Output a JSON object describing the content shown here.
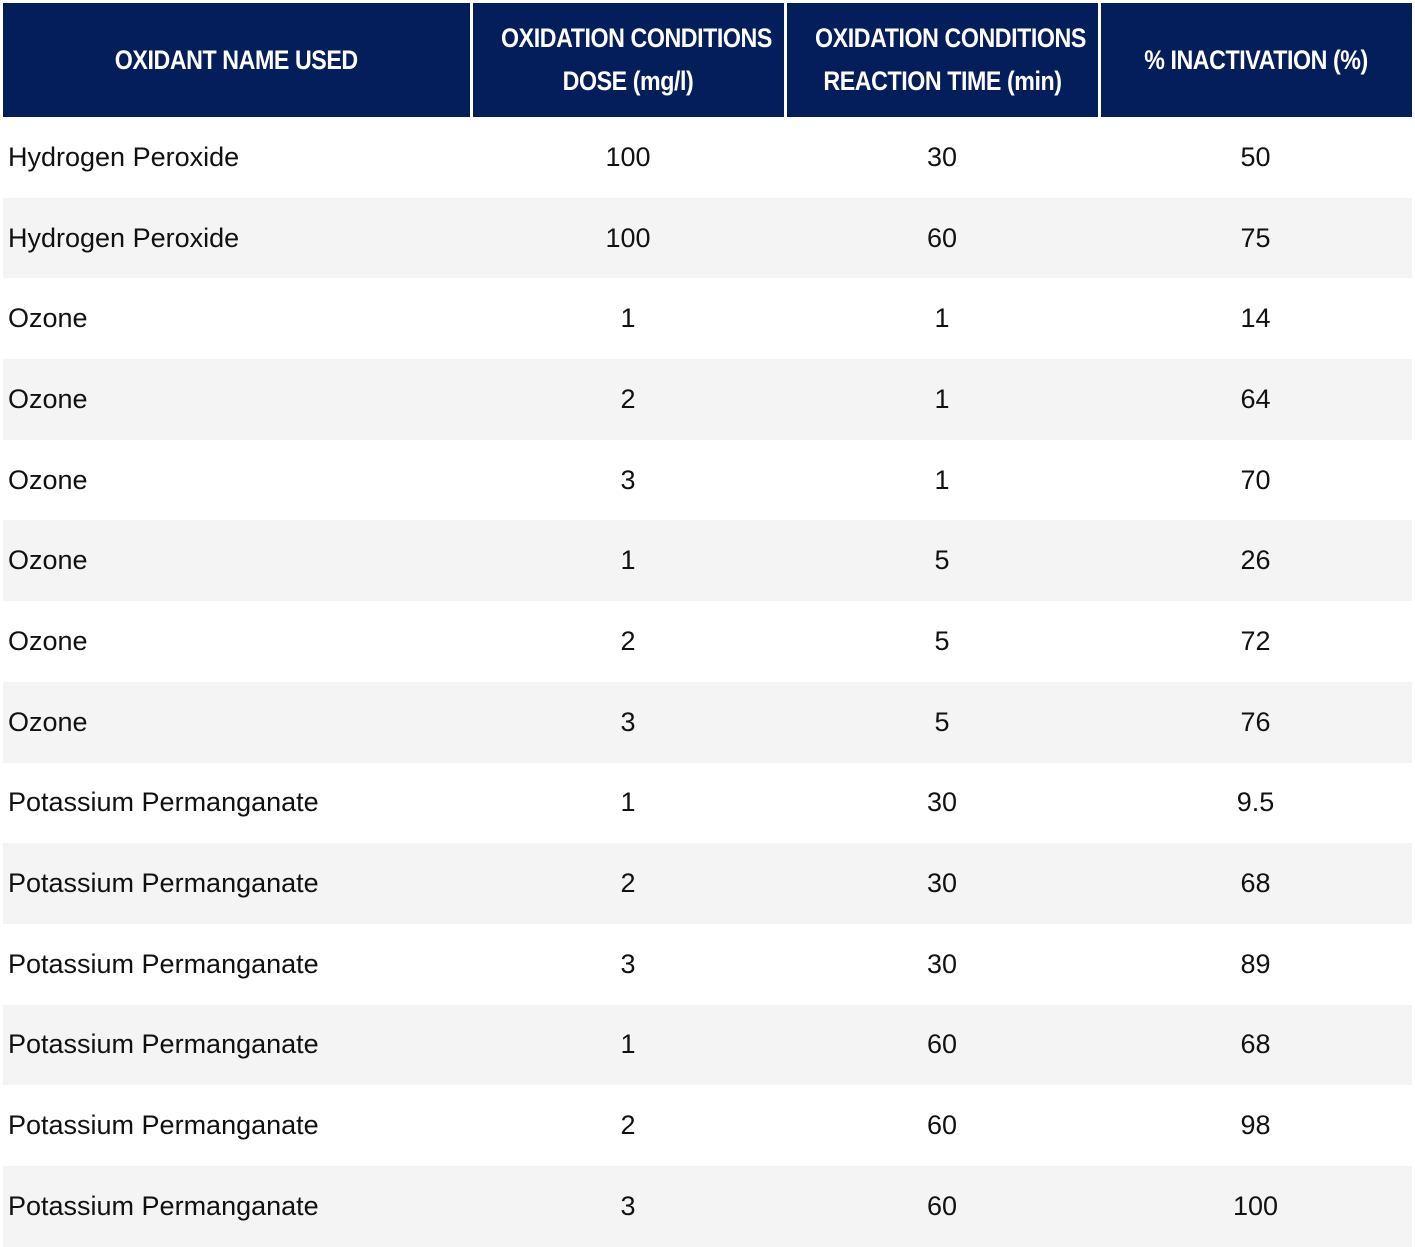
{
  "table": {
    "headers": [
      [
        "OXIDANT NAME USED"
      ],
      [
        "OXIDATION CONDITIONS",
        "DOSE (mg/l)"
      ],
      [
        "OXIDATION CONDITIONS",
        "REACTION TIME (min)"
      ],
      [
        "% INACTIVATION (%)"
      ]
    ],
    "rows": [
      {
        "oxidant": "Hydrogen Peroxide",
        "dose": "100",
        "time": "30",
        "inactivation": "50"
      },
      {
        "oxidant": "Hydrogen Peroxide",
        "dose": "100",
        "time": "60",
        "inactivation": "75"
      },
      {
        "oxidant": "Ozone",
        "dose": "1",
        "time": "1",
        "inactivation": "14"
      },
      {
        "oxidant": "Ozone",
        "dose": "2",
        "time": "1",
        "inactivation": "64"
      },
      {
        "oxidant": "Ozone",
        "dose": "3",
        "time": "1",
        "inactivation": "70"
      },
      {
        "oxidant": "Ozone",
        "dose": "1",
        "time": "5",
        "inactivation": "26"
      },
      {
        "oxidant": "Ozone",
        "dose": "2",
        "time": "5",
        "inactivation": "72"
      },
      {
        "oxidant": "Ozone",
        "dose": "3",
        "time": "5",
        "inactivation": "76"
      },
      {
        "oxidant": "Potassium Permanganate",
        "dose": "1",
        "time": "30",
        "inactivation": "9.5"
      },
      {
        "oxidant": "Potassium Permanganate",
        "dose": "2",
        "time": "30",
        "inactivation": "68"
      },
      {
        "oxidant": "Potassium Permanganate",
        "dose": "3",
        "time": "30",
        "inactivation": "89"
      },
      {
        "oxidant": "Potassium Permanganate",
        "dose": "1",
        "time": "60",
        "inactivation": "68"
      },
      {
        "oxidant": "Potassium Permanganate",
        "dose": "2",
        "time": "60",
        "inactivation": "98"
      },
      {
        "oxidant": "Potassium Permanganate",
        "dose": "3",
        "time": "60",
        "inactivation": "100"
      }
    ]
  },
  "colors": {
    "header_bg": "#041e5b",
    "header_text": "#ffffff",
    "row_alt_bg": "#f4f4f4"
  }
}
